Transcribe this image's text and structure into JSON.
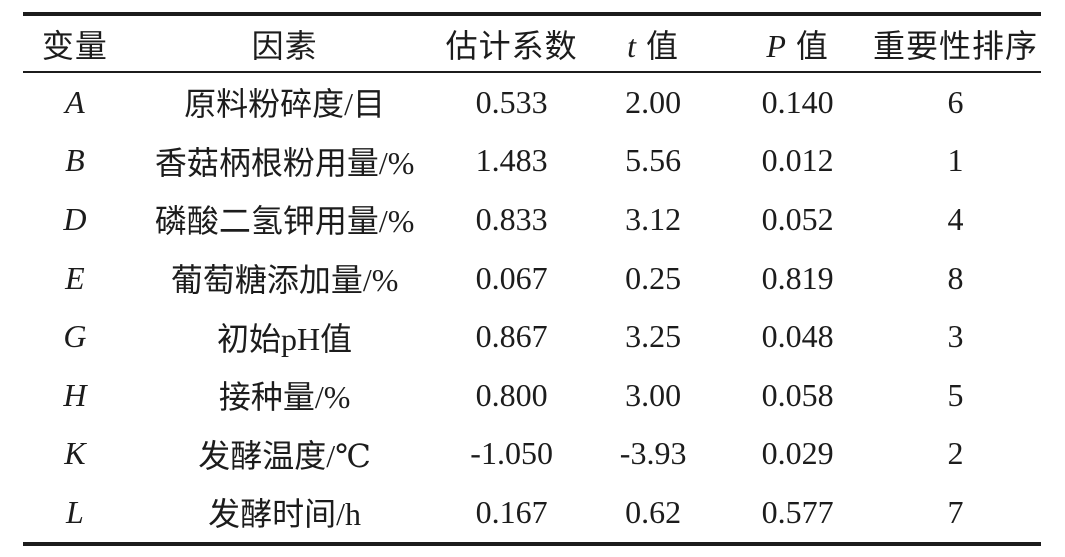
{
  "table": {
    "rule_color": "#1c1c1c",
    "text_color": "#1c1c1c",
    "headers": [
      {
        "em": "",
        "text": "变量"
      },
      {
        "em": "",
        "text": "因素"
      },
      {
        "em": "",
        "text": "估计系数"
      },
      {
        "em": "t",
        "text": " 值"
      },
      {
        "em": "P",
        "text": " 值"
      },
      {
        "em": "",
        "text": "重要性排序"
      }
    ],
    "rows": [
      {
        "variable": "A",
        "factor": "原料粉碎度/目",
        "coefficient": "0.533",
        "t_value": "2.00",
        "p_value": "0.140",
        "rank": "6"
      },
      {
        "variable": "B",
        "factor": "香菇柄根粉用量/%",
        "coefficient": "1.483",
        "t_value": "5.56",
        "p_value": "0.012",
        "rank": "1"
      },
      {
        "variable": "D",
        "factor": "磷酸二氢钾用量/%",
        "coefficient": "0.833",
        "t_value": "3.12",
        "p_value": "0.052",
        "rank": "4"
      },
      {
        "variable": "E",
        "factor": "葡萄糖添加量/%",
        "coefficient": "0.067",
        "t_value": "0.25",
        "p_value": "0.819",
        "rank": "8"
      },
      {
        "variable": "G",
        "factor": "初始pH值",
        "coefficient": "0.867",
        "t_value": "3.25",
        "p_value": "0.048",
        "rank": "3"
      },
      {
        "variable": "H",
        "factor": "接种量/%",
        "coefficient": "0.800",
        "t_value": "3.00",
        "p_value": "0.058",
        "rank": "5"
      },
      {
        "variable": "K",
        "factor": "发酵温度/℃",
        "coefficient": "-1.050",
        "t_value": "-3.93",
        "p_value": "0.029",
        "rank": "2"
      },
      {
        "variable": "L",
        "factor": "发酵时间/h",
        "coefficient": "0.167",
        "t_value": "0.62",
        "p_value": "0.577",
        "rank": "7"
      }
    ]
  }
}
